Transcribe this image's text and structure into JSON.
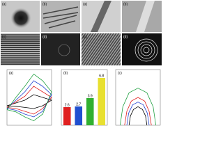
{
  "images": [
    {
      "label": "(a)"
    },
    {
      "label": "(b)"
    },
    {
      "label": "(a)"
    },
    {
      "label": "(b)"
    },
    {
      "label": "(c)"
    },
    {
      "label": "(d)"
    },
    {
      "label": "(c)"
    },
    {
      "label": "(d)"
    }
  ],
  "charts": [
    {
      "type": "line",
      "label": "(a)",
      "xlim": [
        0,
        10
      ],
      "ylim": [
        -4,
        6
      ],
      "series": [
        {
          "color": "#000000",
          "x": [
            0,
            2,
            4,
            6,
            8,
            10,
            8,
            6,
            4,
            2,
            0
          ],
          "y": [
            -0.5,
            0,
            0.5,
            1.5,
            1,
            0.5,
            -0.5,
            -1,
            -0.8,
            -0.6,
            -0.5
          ]
        },
        {
          "color": "#e02020",
          "x": [
            0,
            2,
            4,
            6,
            8,
            10,
            8,
            6,
            4,
            2,
            0
          ],
          "y": [
            -0.8,
            0.2,
            1.2,
            3,
            2,
            1,
            -1,
            -2,
            -1.5,
            -1,
            -0.8
          ]
        },
        {
          "color": "#2040d0",
          "x": [
            0,
            2,
            4,
            6,
            8,
            10,
            8,
            6,
            4,
            2,
            0
          ],
          "y": [
            -1,
            0.5,
            2,
            4,
            3,
            1.5,
            -1.5,
            -2.5,
            -2,
            -1.3,
            -1
          ]
        },
        {
          "color": "#20a040",
          "x": [
            0,
            2,
            4,
            6,
            8,
            10,
            8,
            6,
            4,
            2,
            0
          ],
          "y": [
            -1.2,
            1,
            3,
            5.2,
            4,
            2,
            -2,
            -3.2,
            -2.5,
            -1.6,
            -1.2
          ]
        }
      ]
    },
    {
      "type": "bar",
      "label": "(b)",
      "ylim": [
        0,
        8
      ],
      "values": [
        2.6,
        2.7,
        3.9,
        6.8
      ],
      "colors": [
        "#e02020",
        "#2050d0",
        "#30b030",
        "#e8e030"
      ]
    },
    {
      "type": "line",
      "label": "(c)",
      "xlim": [
        0,
        10
      ],
      "ylim": [
        0,
        6
      ],
      "series": [
        {
          "color": "#20a040",
          "x": [
            1,
            1.6,
            3,
            5,
            7,
            8.4,
            9
          ],
          "y": [
            0,
            2,
            3.5,
            4,
            3.5,
            2,
            0
          ]
        },
        {
          "color": "#e02020",
          "x": [
            2,
            2.5,
            3.5,
            5,
            6.5,
            7.5,
            8
          ],
          "y": [
            0,
            1.5,
            2.6,
            3,
            2.6,
            1.5,
            0
          ]
        },
        {
          "color": "#2040d0",
          "x": [
            2.5,
            2.9,
            3.8,
            5,
            6.2,
            7.1,
            7.5
          ],
          "y": [
            0,
            1.3,
            2.2,
            2.5,
            2.2,
            1.3,
            0
          ]
        },
        {
          "color": "#000000",
          "x": [
            3,
            3.3,
            4,
            5,
            6,
            6.7,
            7
          ],
          "y": [
            0,
            1,
            1.7,
            2,
            1.7,
            1,
            0
          ]
        }
      ]
    }
  ]
}
